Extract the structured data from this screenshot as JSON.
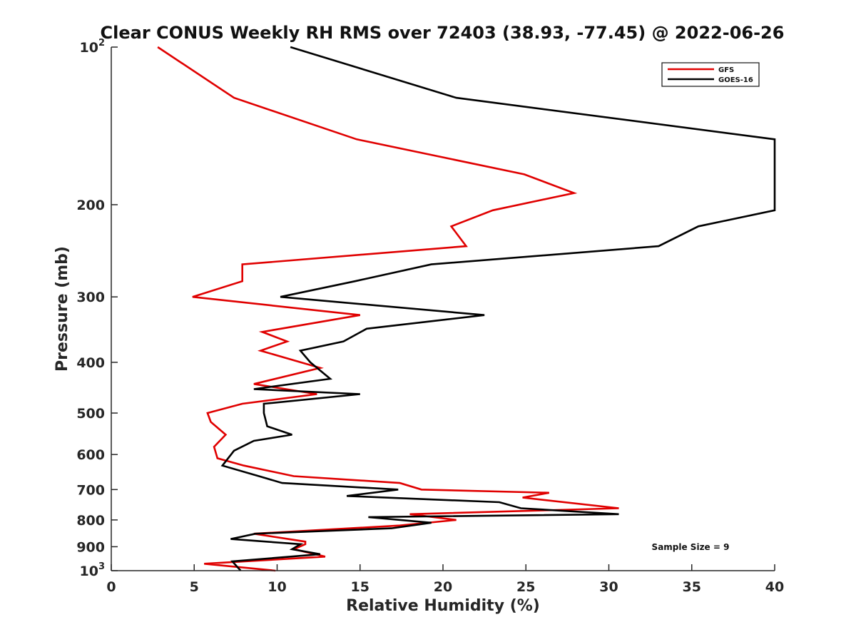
{
  "chart_data": {
    "type": "line",
    "title": "Clear CONUS Weekly RH RMS over 72403 (38.93, -77.45) @ 2022-06-26",
    "xlabel": "Relative Humidity (%)",
    "ylabel": "Pressure (mb)",
    "xlim": [
      0,
      40
    ],
    "ylim": [
      100,
      1000
    ],
    "y_scale": "log",
    "y_reversed": true,
    "x_ticks": [
      "0",
      "5",
      "10",
      "15",
      "20",
      "25",
      "30",
      "35",
      "40"
    ],
    "y_ticks": [
      {
        "value": 100,
        "base": "10",
        "exp": "2"
      },
      {
        "value": 200,
        "label": "200"
      },
      {
        "value": 300,
        "label": "300"
      },
      {
        "value": 400,
        "label": "400"
      },
      {
        "value": 500,
        "label": "500"
      },
      {
        "value": 600,
        "label": "600"
      },
      {
        "value": 700,
        "label": "700"
      },
      {
        "value": 800,
        "label": "800"
      },
      {
        "value": 900,
        "label": "900"
      },
      {
        "value": 1000,
        "base": "10",
        "exp": "3"
      }
    ],
    "grid": false,
    "legend_position": "top-right",
    "annotation": "Sample Size = 9",
    "series": [
      {
        "name": "GFS",
        "color": "#e00000",
        "points": [
          [
            2.8,
            100
          ],
          [
            7.4,
            125
          ],
          [
            14.8,
            150
          ],
          [
            24.9,
            175
          ],
          [
            27.9,
            190
          ],
          [
            23.0,
            205
          ],
          [
            20.5,
            220
          ],
          [
            21.4,
            240
          ],
          [
            7.9,
            260
          ],
          [
            7.9,
            280
          ],
          [
            4.9,
            300
          ],
          [
            15.0,
            325
          ],
          [
            9.1,
            350
          ],
          [
            10.6,
            365
          ],
          [
            9.0,
            380
          ],
          [
            12.6,
            410
          ],
          [
            8.6,
            440
          ],
          [
            12.4,
            460
          ],
          [
            7.9,
            480
          ],
          [
            5.8,
            500
          ],
          [
            6.0,
            520
          ],
          [
            6.9,
            550
          ],
          [
            6.2,
            580
          ],
          [
            6.4,
            610
          ],
          [
            8.0,
            630
          ],
          [
            11.0,
            660
          ],
          [
            17.4,
            680
          ],
          [
            18.7,
            700
          ],
          [
            26.4,
            710
          ],
          [
            24.8,
            725
          ],
          [
            30.6,
            760
          ],
          [
            18.0,
            780
          ],
          [
            20.8,
            800
          ],
          [
            17.4,
            820
          ],
          [
            8.6,
            850
          ],
          [
            11.7,
            880
          ],
          [
            11.7,
            890
          ],
          [
            11.0,
            910
          ],
          [
            12.9,
            940
          ],
          [
            5.6,
            970
          ],
          [
            9.9,
            1000
          ]
        ]
      },
      {
        "name": "GOES-16",
        "color": "#000000",
        "points": [
          [
            10.8,
            100
          ],
          [
            20.8,
            125
          ],
          [
            40.0,
            150
          ],
          [
            40.0,
            205
          ],
          [
            35.4,
            220
          ],
          [
            33.0,
            240
          ],
          [
            19.3,
            260
          ],
          [
            14.7,
            280
          ],
          [
            10.2,
            300
          ],
          [
            22.5,
            325
          ],
          [
            15.4,
            345
          ],
          [
            14.0,
            365
          ],
          [
            11.4,
            380
          ],
          [
            12.0,
            400
          ],
          [
            13.2,
            430
          ],
          [
            8.6,
            450
          ],
          [
            15.0,
            460
          ],
          [
            9.2,
            480
          ],
          [
            9.2,
            500
          ],
          [
            9.4,
            530
          ],
          [
            10.9,
            550
          ],
          [
            8.6,
            565
          ],
          [
            7.4,
            590
          ],
          [
            6.7,
            630
          ],
          [
            8.9,
            660
          ],
          [
            10.3,
            680
          ],
          [
            17.3,
            700
          ],
          [
            14.2,
            720
          ],
          [
            23.4,
            740
          ],
          [
            24.7,
            760
          ],
          [
            30.6,
            780
          ],
          [
            15.5,
            790
          ],
          [
            19.3,
            810
          ],
          [
            16.9,
            830
          ],
          [
            8.7,
            850
          ],
          [
            7.2,
            870
          ],
          [
            11.4,
            890
          ],
          [
            10.9,
            910
          ],
          [
            12.6,
            930
          ],
          [
            7.3,
            960
          ],
          [
            7.8,
            1000
          ]
        ]
      }
    ]
  }
}
